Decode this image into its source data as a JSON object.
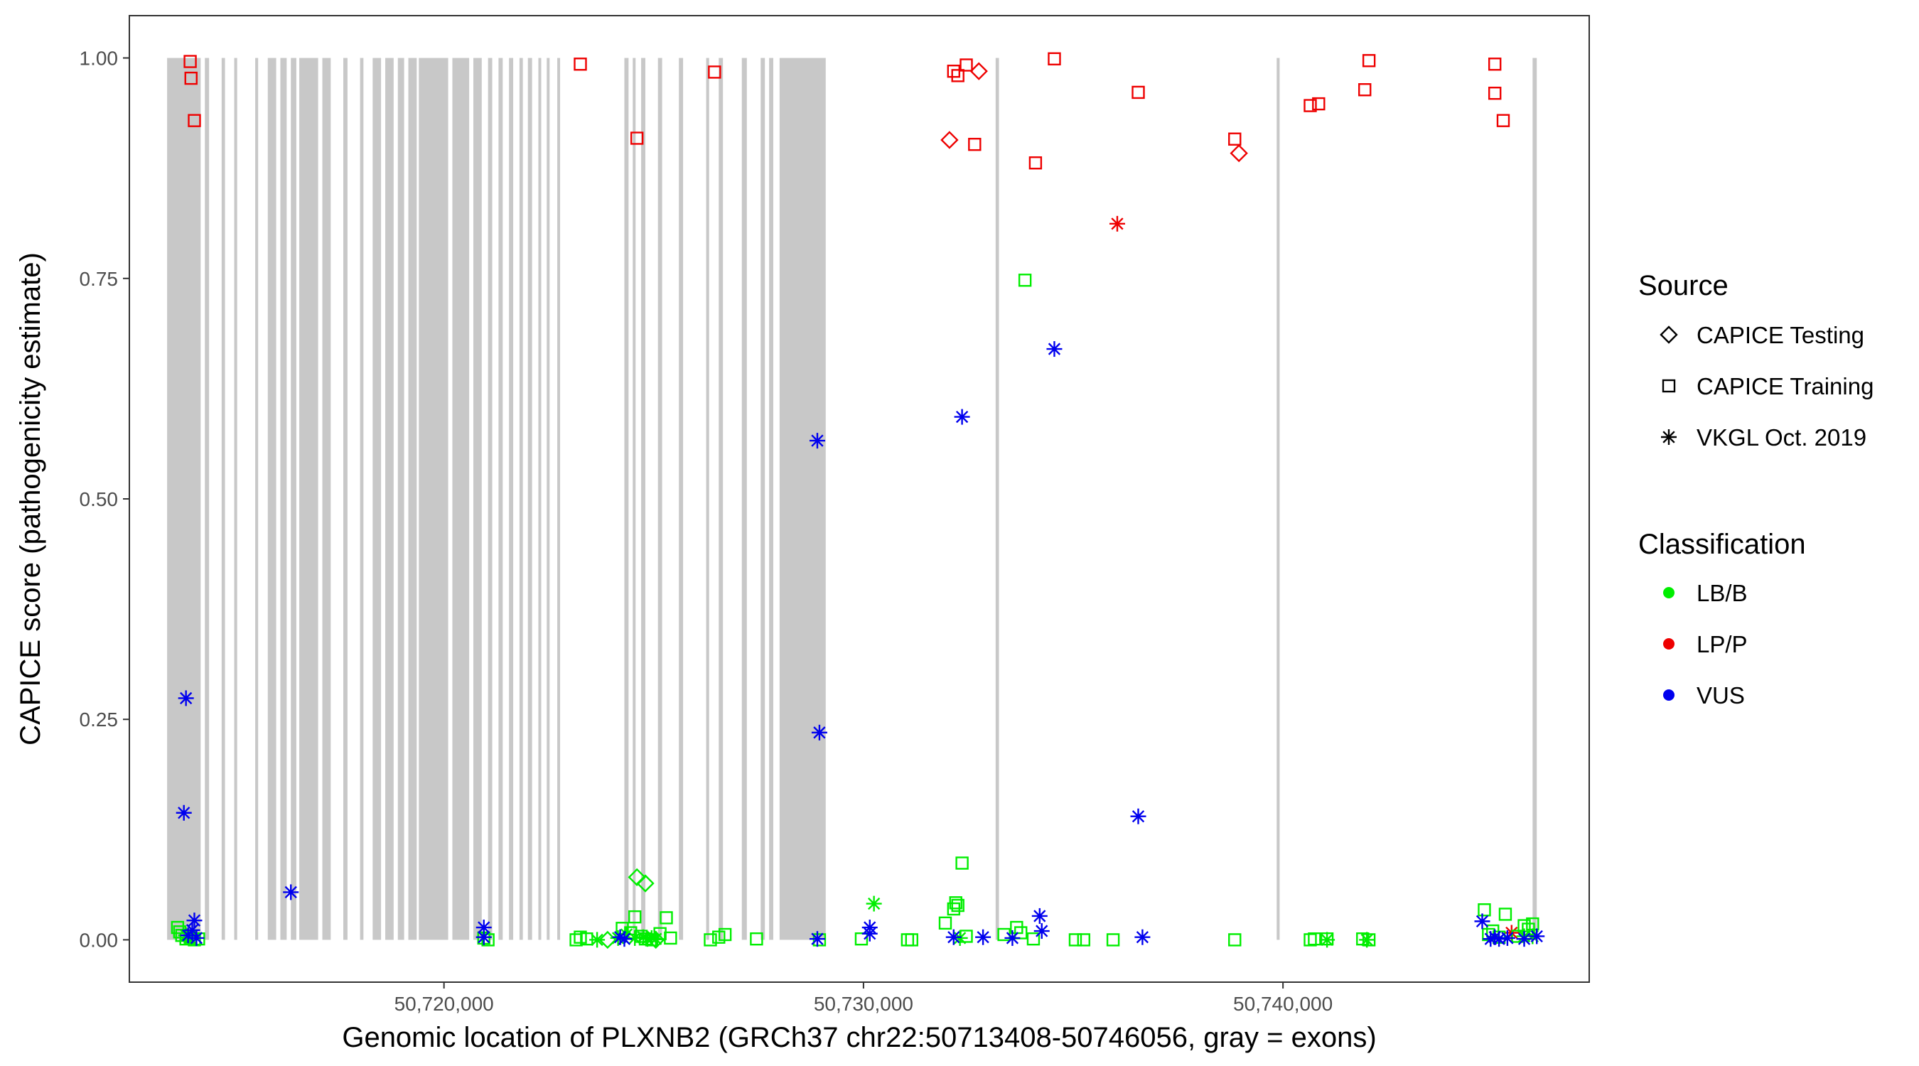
{
  "chart_data": {
    "type": "scatter",
    "xlabel": "Genomic location of PLXNB2 (GRCh37 chr22:50713408-50746056, gray = exons)",
    "ylabel": "CAPICE score (pathogenicity estimate)",
    "xlim": [
      50712500,
      50747300
    ],
    "ylim": [
      -0.048,
      1.048
    ],
    "x_ticks": [
      50720000,
      50730000,
      50740000
    ],
    "x_tick_labels": [
      "50,720,000",
      "50,730,000",
      "50,740,000"
    ],
    "y_ticks": [
      0,
      0.25,
      0.5,
      0.75,
      1
    ],
    "y_tick_labels": [
      "0.00",
      "0.25",
      "0.50",
      "0.75",
      "1.00"
    ],
    "grid": false,
    "legend_placement": "right",
    "colors": {
      "LB/B": "#00ee00",
      "LP/P": "#ee0000",
      "VUS": "#0000ee",
      "exon": "#c8c8c8"
    },
    "exons": [
      [
        50713400,
        50714200
      ],
      [
        50714300,
        50714400
      ],
      [
        50714700,
        50714780
      ],
      [
        50715000,
        50715070
      ],
      [
        50715500,
        50715570
      ],
      [
        50715800,
        50716000
      ],
      [
        50716100,
        50716250
      ],
      [
        50716350,
        50716480
      ],
      [
        50716550,
        50717000
      ],
      [
        50717100,
        50717300
      ],
      [
        50717600,
        50717700
      ],
      [
        50718000,
        50718080
      ],
      [
        50718300,
        50718500
      ],
      [
        50718600,
        50718800
      ],
      [
        50718900,
        50719050
      ],
      [
        50719150,
        50719350
      ],
      [
        50719400,
        50720100
      ],
      [
        50720200,
        50720600
      ],
      [
        50720700,
        50720900
      ],
      [
        50721050,
        50721150
      ],
      [
        50721300,
        50721400
      ],
      [
        50721550,
        50721650
      ],
      [
        50721800,
        50721880
      ],
      [
        50722000,
        50722100
      ],
      [
        50722250,
        50722300
      ],
      [
        50722450,
        50722500
      ],
      [
        50722700,
        50722760
      ],
      [
        50724300,
        50724400
      ],
      [
        50724500,
        50724560
      ],
      [
        50724700,
        50724800
      ],
      [
        50725100,
        50725200
      ],
      [
        50725600,
        50725700
      ],
      [
        50726250,
        50726320
      ],
      [
        50726550,
        50726650
      ],
      [
        50727100,
        50727220
      ],
      [
        50727550,
        50727650
      ],
      [
        50727750,
        50727850
      ],
      [
        50728000,
        50729100
      ],
      [
        50733150,
        50733230
      ],
      [
        50739850,
        50739920
      ],
      [
        50745950,
        50746050
      ]
    ],
    "series": [
      {
        "source": "CAPICE Training",
        "classification": "LP/P",
        "points": [
          [
            50713950,
            0.996
          ],
          [
            50713970,
            0.977
          ],
          [
            50714050,
            0.929
          ],
          [
            50723250,
            0.993
          ],
          [
            50724600,
            0.909
          ],
          [
            50726450,
            0.984
          ],
          [
            50732150,
            0.985
          ],
          [
            50732250,
            0.98
          ],
          [
            50732450,
            0.992
          ],
          [
            50732650,
            0.902
          ],
          [
            50734100,
            0.881
          ],
          [
            50734550,
            0.999
          ],
          [
            50736550,
            0.961
          ],
          [
            50738850,
            0.908
          ],
          [
            50740650,
            0.946
          ],
          [
            50740850,
            0.948
          ],
          [
            50741950,
            0.964
          ],
          [
            50742050,
            0.997
          ],
          [
            50745050,
            0.993
          ],
          [
            50745050,
            0.96
          ],
          [
            50745250,
            0.929
          ]
        ]
      },
      {
        "source": "CAPICE Testing",
        "classification": "LP/P",
        "points": [
          [
            50732050,
            0.907
          ],
          [
            50732750,
            0.985
          ],
          [
            50738950,
            0.892
          ]
        ]
      },
      {
        "source": "VKGL Oct. 2019",
        "classification": "LP/P",
        "points": [
          [
            50736050,
            0.812
          ],
          [
            50745450,
            0.008
          ]
        ]
      },
      {
        "source": "CAPICE Training",
        "classification": "LB/B",
        "points": [
          [
            50713650,
            0.014
          ],
          [
            50713700,
            0.009
          ],
          [
            50713750,
            0.005
          ],
          [
            50713850,
            0.001
          ],
          [
            50713950,
            0.003
          ],
          [
            50714050,
            0.0
          ],
          [
            50714150,
            0.001
          ],
          [
            50720950,
            0.002
          ],
          [
            50721050,
            0.0
          ],
          [
            50723150,
            0.0
          ],
          [
            50723250,
            0.003
          ],
          [
            50723400,
            0.001
          ],
          [
            50724250,
            0.013
          ],
          [
            50724450,
            0.008
          ],
          [
            50724550,
            0.026
          ],
          [
            50724700,
            0.004
          ],
          [
            50724800,
            0.001
          ],
          [
            50724950,
            0.0
          ],
          [
            50725150,
            0.007
          ],
          [
            50725300,
            0.025
          ],
          [
            50725400,
            0.002
          ],
          [
            50726350,
            0.0
          ],
          [
            50726550,
            0.003
          ],
          [
            50726700,
            0.006
          ],
          [
            50727450,
            0.001
          ],
          [
            50728950,
            0.0
          ],
          [
            50729950,
            0.001
          ],
          [
            50731050,
            0.0
          ],
          [
            50731150,
            0.0
          ],
          [
            50731950,
            0.019
          ],
          [
            50732150,
            0.035
          ],
          [
            50732200,
            0.042
          ],
          [
            50732250,
            0.039
          ],
          [
            50732350,
            0.087
          ],
          [
            50732450,
            0.004
          ],
          [
            50733350,
            0.006
          ],
          [
            50733650,
            0.014
          ],
          [
            50733750,
            0.008
          ],
          [
            50733850,
            0.748
          ],
          [
            50734050,
            0.001
          ],
          [
            50735050,
            0.0
          ],
          [
            50735250,
            0.0
          ],
          [
            50735950,
            0.0
          ],
          [
            50738850,
            0.0
          ],
          [
            50740650,
            0.0
          ],
          [
            50740750,
            0.001
          ],
          [
            50741050,
            0.001
          ],
          [
            50741900,
            0.001
          ],
          [
            50742050,
            0.0
          ],
          [
            50744800,
            0.034
          ],
          [
            50744900,
            0.006
          ],
          [
            50745000,
            0.01
          ],
          [
            50745150,
            0.003
          ],
          [
            50745300,
            0.029
          ],
          [
            50745600,
            0.004
          ],
          [
            50745750,
            0.016
          ],
          [
            50745850,
            0.012
          ],
          [
            50745950,
            0.018
          ]
        ]
      },
      {
        "source": "CAPICE Testing",
        "classification": "LB/B",
        "points": [
          [
            50724600,
            0.071
          ],
          [
            50724800,
            0.064
          ],
          [
            50725050,
            0.0
          ],
          [
            50723900,
            0.0
          ]
        ]
      },
      {
        "source": "VKGL Oct. 2019",
        "classification": "LB/B",
        "points": [
          [
            50713850,
            0.005
          ],
          [
            50713950,
            0.002
          ],
          [
            50720950,
            0.003
          ],
          [
            50723650,
            0.0
          ],
          [
            50724150,
            0.002
          ],
          [
            50724350,
            0.006
          ],
          [
            50724550,
            0.002
          ],
          [
            50724750,
            0.003
          ],
          [
            50724850,
            0.001
          ],
          [
            50724950,
            0.002
          ],
          [
            50725050,
            0.001
          ],
          [
            50730250,
            0.041
          ],
          [
            50732300,
            0.002
          ],
          [
            50741050,
            0.0
          ],
          [
            50742000,
            0.0
          ],
          [
            50745750,
            0.004
          ],
          [
            50745950,
            0.004
          ]
        ]
      },
      {
        "source": "VKGL Oct. 2019",
        "classification": "VUS",
        "points": [
          [
            50713850,
            0.274
          ],
          [
            50713800,
            0.144
          ],
          [
            50714050,
            0.022
          ],
          [
            50714000,
            0.011
          ],
          [
            50713900,
            0.005
          ],
          [
            50714100,
            0.002
          ],
          [
            50716350,
            0.054
          ],
          [
            50720950,
            0.014
          ],
          [
            50720950,
            0.003
          ],
          [
            50724200,
            0.003
          ],
          [
            50724300,
            0.001
          ],
          [
            50728900,
            0.566
          ],
          [
            50728950,
            0.235
          ],
          [
            50728900,
            0.001
          ],
          [
            50730150,
            0.014
          ],
          [
            50730150,
            0.007
          ],
          [
            50732350,
            0.593
          ],
          [
            50732150,
            0.003
          ],
          [
            50732850,
            0.003
          ],
          [
            50733550,
            0.002
          ],
          [
            50734200,
            0.027
          ],
          [
            50734250,
            0.01
          ],
          [
            50734550,
            0.67
          ],
          [
            50736550,
            0.14
          ],
          [
            50736650,
            0.003
          ],
          [
            50744750,
            0.021
          ],
          [
            50744950,
            0.001
          ],
          [
            50745050,
            0.003
          ],
          [
            50745150,
            0.001
          ],
          [
            50745350,
            0.002
          ],
          [
            50745750,
            0.001
          ],
          [
            50746050,
            0.004
          ]
        ]
      }
    ]
  },
  "legend": {
    "source_title": "Source",
    "source_items": [
      {
        "label": "CAPICE Testing",
        "shape": "diamond"
      },
      {
        "label": "CAPICE Training",
        "shape": "square"
      },
      {
        "label": "VKGL Oct. 2019",
        "shape": "asterisk"
      }
    ],
    "class_title": "Classification",
    "class_items": [
      {
        "label": "LB/B",
        "color": "#00ee00"
      },
      {
        "label": "LP/P",
        "color": "#ee0000"
      },
      {
        "label": "VUS",
        "color": "#0000ee"
      }
    ]
  }
}
